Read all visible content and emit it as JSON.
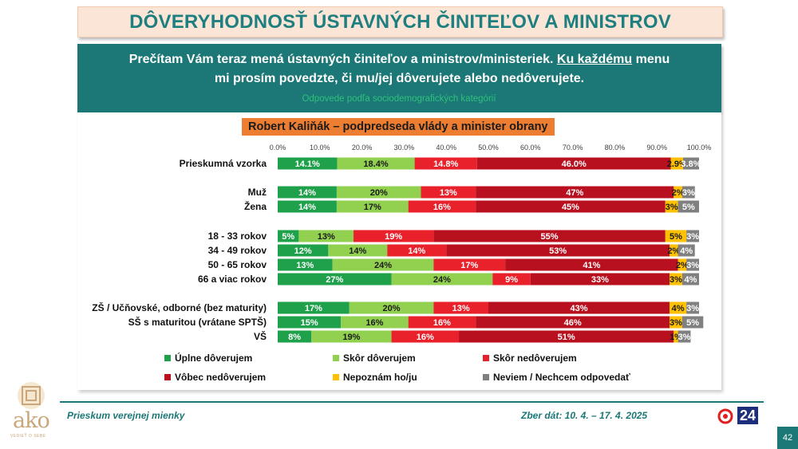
{
  "header": {
    "title": "DÔVERYHODNOSŤ ÚSTAVNÝCH ČINITEĽOV A MINISTROV"
  },
  "question": {
    "part1": "Prečítam Vám teraz mená ústavných činiteľov a ministrov/ministeriek. ",
    "underlined": "Ku každému",
    "part2": " menu mi prosím povedzte, či mu/jej dôverujete alebo nedôverujete.",
    "subtitle": "Odpovede podľa sociodemografických kategórií"
  },
  "person_label": "Robert Kaliňák – podpredseda vlády a minister obrany",
  "footer": {
    "left": "Prieskum verejnej mienky",
    "right": "Zber dát: 10. 4. – 17. 4. 2025",
    "page": "42",
    "logo_text": "ako",
    "logo_tagline": "VEDIEŤ O SEBE",
    "tv_logo": "24"
  },
  "chart_data": {
    "type": "bar",
    "orientation": "horizontal",
    "stacked": true,
    "xlim": [
      0,
      100
    ],
    "x_ticks": [
      "0.0%",
      "10.0%",
      "20.0%",
      "30.0%",
      "40.0%",
      "50.0%",
      "60.0%",
      "70.0%",
      "80.0%",
      "90.0%",
      "100.0%"
    ],
    "legend_position": "bottom",
    "series": [
      {
        "name": "Úplne dôverujem",
        "color": "#1fa04a"
      },
      {
        "name": "Skôr dôverujem",
        "color": "#92d050"
      },
      {
        "name": "Skôr nedôverujem",
        "color": "#e8212b"
      },
      {
        "name": "Vôbec nedôverujem",
        "color": "#b8101e"
      },
      {
        "name": "Nepoznám ho/ju",
        "color": "#ffc000"
      },
      {
        "name": "Neviem / Nechcem odpovedať",
        "color": "#808080"
      }
    ],
    "rows": [
      {
        "category": "Prieskumná vzorka",
        "values": [
          14.1,
          18.4,
          14.8,
          46.0,
          2.9,
          3.8
        ],
        "labels": [
          "14.1%",
          "18.4%",
          "14.8%",
          "46.0%",
          "2.9%",
          "3.8%"
        ]
      },
      {
        "category": "Muž",
        "values": [
          14,
          20,
          13,
          47,
          2,
          3
        ],
        "labels": [
          "14%",
          "20%",
          "13%",
          "47%",
          "2%",
          "3%"
        ]
      },
      {
        "category": "Žena",
        "values": [
          14,
          17,
          16,
          45,
          3,
          5
        ],
        "labels": [
          "14%",
          "17%",
          "16%",
          "45%",
          "3%",
          "5%"
        ]
      },
      {
        "category": "18 - 33 rokov",
        "values": [
          5,
          13,
          19,
          55,
          5,
          3
        ],
        "labels": [
          "5%",
          "13%",
          "19%",
          "55%",
          "5%",
          "3%"
        ]
      },
      {
        "category": "34 - 49 rokov",
        "values": [
          12,
          14,
          14,
          53,
          2,
          4
        ],
        "labels": [
          "12%",
          "14%",
          "14%",
          "53%",
          "2%",
          "4%"
        ]
      },
      {
        "category": "50 - 65 rokov",
        "values": [
          13,
          24,
          17,
          41,
          2,
          3
        ],
        "labels": [
          "13%",
          "24%",
          "17%",
          "41%",
          "2%",
          "3%"
        ]
      },
      {
        "category": "66 a viac rokov",
        "values": [
          27,
          24,
          9,
          33,
          3,
          4
        ],
        "labels": [
          "27%",
          "24%",
          "9%",
          "33%",
          "3%",
          "4%"
        ]
      },
      {
        "category": "ZŠ / Učňovské, odborné (bez maturity)",
        "values": [
          17,
          20,
          13,
          43,
          4,
          3
        ],
        "labels": [
          "17%",
          "20%",
          "13%",
          "43%",
          "4%",
          "3%"
        ]
      },
      {
        "category": "SŠ s maturitou (vrátane SPTŠ)",
        "values": [
          15,
          16,
          16,
          46,
          3,
          5
        ],
        "labels": [
          "15%",
          "16%",
          "16%",
          "46%",
          "3%",
          "5%"
        ]
      },
      {
        "category": "VŠ",
        "values": [
          8,
          19,
          16,
          51,
          1,
          3
        ],
        "labels": [
          "8%",
          "19%",
          "16%",
          "51%",
          "1%",
          "3%"
        ]
      }
    ]
  }
}
